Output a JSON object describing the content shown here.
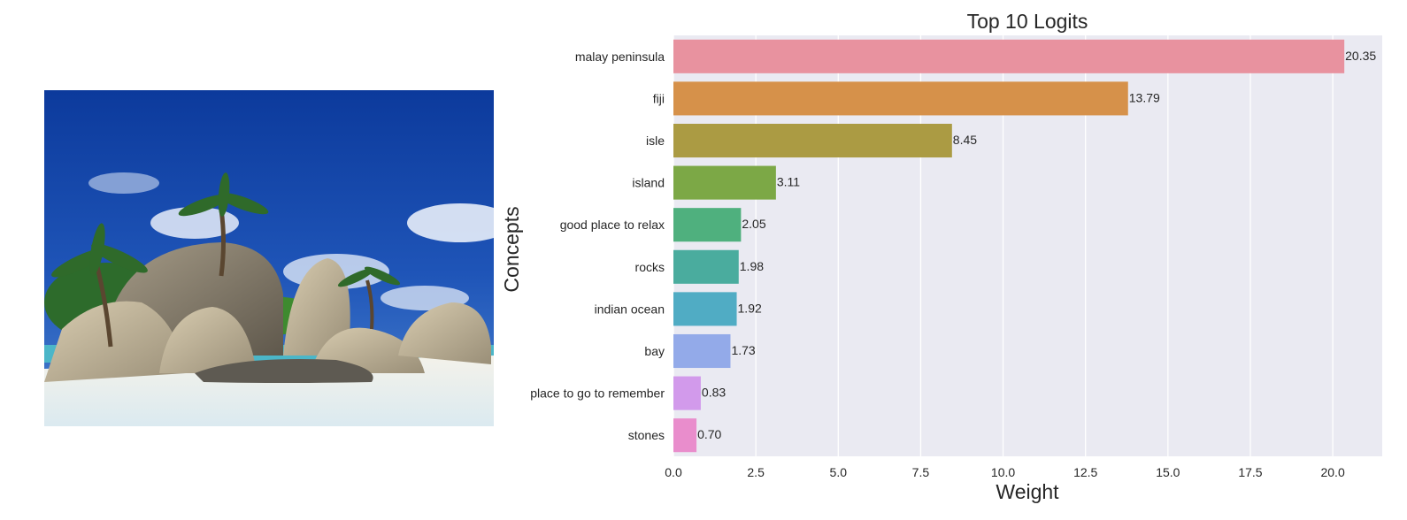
{
  "image": {
    "description_icon": "tropical-beach-photo-icon",
    "palette": {
      "sky": "#1f4fb0",
      "sand": "#eef3f4",
      "rock": "#b9ad92",
      "palm": "#2f6a2a"
    }
  },
  "chart_data": {
    "type": "bar",
    "orientation": "horizontal",
    "title": "Top 10 Logits",
    "xlabel": "Weight",
    "ylabel": "Concepts",
    "xlim": [
      0,
      21.5
    ],
    "xticks": [
      0.0,
      2.5,
      5.0,
      7.5,
      10.0,
      12.5,
      15.0,
      17.5,
      20.0
    ],
    "xtick_labels": [
      "0.0",
      "2.5",
      "5.0",
      "7.5",
      "10.0",
      "12.5",
      "15.0",
      "17.5",
      "20.0"
    ],
    "grid": true,
    "background": "#eaeaf2",
    "categories": [
      "malay peninsula",
      "fiji",
      "isle",
      "island",
      "good place to relax",
      "rocks",
      "indian ocean",
      "bay",
      "place to go to remember",
      "stones"
    ],
    "values": [
      20.35,
      13.79,
      8.45,
      3.11,
      2.05,
      1.98,
      1.92,
      1.73,
      0.83,
      0.7
    ],
    "value_labels": [
      "20.35",
      "13.79",
      "8.45",
      "3.11",
      "2.05",
      "1.98",
      "1.92",
      "1.73",
      "0.83",
      "0.70"
    ],
    "colors": [
      "#e8929f",
      "#d6914a",
      "#ab9b43",
      "#7ca846",
      "#4fb07e",
      "#4aac9e",
      "#50acc4",
      "#93aae9",
      "#d29aeb",
      "#e98dcc"
    ]
  }
}
